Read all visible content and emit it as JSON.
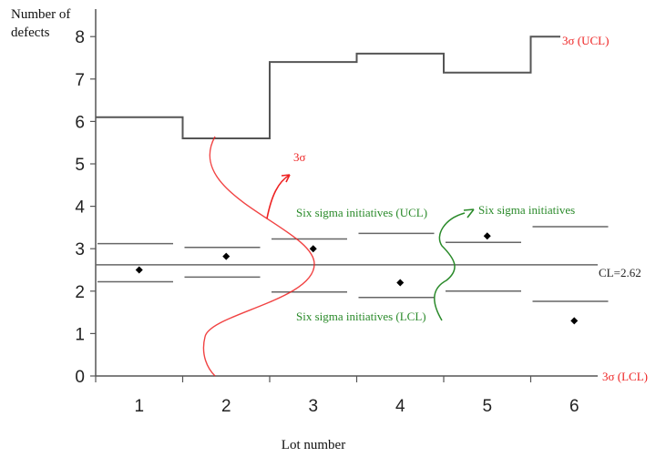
{
  "chart_data": {
    "type": "control chart",
    "ylabel": "Number of defects",
    "xlabel": "Lot number",
    "yticks": [
      0,
      1,
      2,
      3,
      4,
      5,
      6,
      7,
      8
    ],
    "categories": [
      "1",
      "2",
      "3",
      "4",
      "5",
      "6"
    ],
    "ylim": [
      0,
      8.6
    ],
    "grid": false,
    "center_line": {
      "value": 2.62,
      "label": "CL=2.62"
    },
    "points": [
      {
        "lot": "1",
        "value": 2.5
      },
      {
        "lot": "2",
        "value": 2.82
      },
      {
        "lot": "3",
        "value": 3.0
      },
      {
        "lot": "4",
        "value": 2.2
      },
      {
        "lot": "5",
        "value": 3.3
      },
      {
        "lot": "6",
        "value": 1.3
      }
    ],
    "ucl_3sigma": {
      "label": "3σ (UCL)",
      "values": [
        6.1,
        5.6,
        7.4,
        7.6,
        7.15,
        8.0
      ],
      "color": "#555555"
    },
    "lcl_3sigma": {
      "label": "3σ (LCL)",
      "value": 0
    },
    "six_sigma_ucl": [
      3.12,
      3.03,
      3.23,
      3.36,
      3.15,
      3.52
    ],
    "six_sigma_lcl": [
      2.22,
      2.33,
      1.98,
      1.85,
      2.0,
      1.76
    ],
    "annotations": {
      "three_sigma": "3σ",
      "six_sigma_ucl": "Six sigma initiatives (UCL)",
      "six_sigma_lcl": "Six sigma initiatives (LCL)",
      "six_sigma": "Six sigma initiatives"
    },
    "colors": {
      "red": "#ee2222",
      "green": "#2a8a2a",
      "axis": "#555555",
      "line": "#666666"
    }
  }
}
